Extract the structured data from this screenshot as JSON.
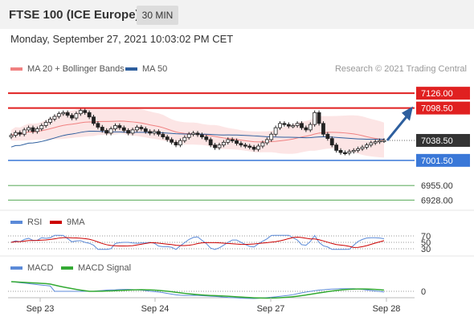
{
  "header": {
    "title": "FTSE 100 (ICE Europe)",
    "timeframe": "30 MIN"
  },
  "timestamp": "Monday, September 27, 2021 10:03:02 PM CET",
  "credit": "Research © 2021 Trading Central",
  "colors": {
    "resistance": "#e02020",
    "support": "#3a78d8",
    "target": "#1a8a1a",
    "arrow": "#2e5f9e",
    "ma20": "#f08080",
    "ma50": "#2e5f9e",
    "rsi": "#5b8ad8",
    "rsi9": "#cc0000",
    "macd": "#5b8ad8",
    "macd_signal": "#33aa33"
  },
  "chart_data": [
    {
      "type": "candlestick",
      "title": "FTSE 100 (ICE Europe)",
      "timeframe": "30 MIN",
      "ylim": [
        6915,
        7150
      ],
      "x_ticks": [
        "Sep 23",
        "Sep 24",
        "Sep 27",
        "Sep 28"
      ],
      "legend": [
        {
          "name": "MA 20 + Bollinger Bands",
          "color": "#f08080"
        },
        {
          "name": "MA 50",
          "color": "#2e5f9e"
        }
      ],
      "levels": [
        {
          "value": 7126.0,
          "label": "7126.00",
          "kind": "resistance"
        },
        {
          "value": 7098.5,
          "label": "7098.50",
          "kind": "resistance"
        },
        {
          "value": 7038.5,
          "label": "7038.50",
          "kind": "last"
        },
        {
          "value": 7001.5,
          "label": "7001.50",
          "kind": "support"
        },
        {
          "value": 6955.0,
          "label": "6955.00",
          "kind": "target"
        },
        {
          "value": 6928.0,
          "label": "6928.00",
          "kind": "target"
        }
      ],
      "close_series": [
        7048,
        7053,
        7050,
        7058,
        7062,
        7055,
        7060,
        7066,
        7072,
        7078,
        7083,
        7088,
        7090,
        7085,
        7080,
        7088,
        7094,
        7090,
        7082,
        7070,
        7063,
        7057,
        7052,
        7060,
        7066,
        7062,
        7057,
        7052,
        7058,
        7063,
        7060,
        7055,
        7052,
        7055,
        7050,
        7045,
        7040,
        7035,
        7030,
        7038,
        7044,
        7050,
        7052,
        7049,
        7045,
        7040,
        7030,
        7025,
        7030,
        7035,
        7040,
        7038,
        7033,
        7030,
        7028,
        7026,
        7022,
        7028,
        7034,
        7040,
        7050,
        7062,
        7070,
        7068,
        7065,
        7066,
        7070,
        7062,
        7058,
        7068,
        7090,
        7070,
        7050,
        7042,
        7030,
        7020,
        7016,
        7015,
        7018,
        7020,
        7023,
        7026,
        7030,
        7034,
        7036,
        7038,
        7038.5
      ],
      "annotation": {
        "type": "arrow",
        "from": 7038.5,
        "to": 7098.5
      }
    },
    {
      "type": "line",
      "legend": [
        {
          "name": "RSI",
          "color": "#5b8ad8"
        },
        {
          "name": "9MA",
          "color": "#cc0000"
        }
      ],
      "ylim": [
        0,
        100
      ],
      "levels": [
        70,
        50,
        30
      ],
      "level_labels": [
        "70",
        "50",
        "30"
      ]
    },
    {
      "type": "line",
      "legend": [
        {
          "name": "MACD",
          "color": "#5b8ad8"
        },
        {
          "name": "MACD Signal",
          "color": "#33aa33"
        }
      ],
      "zero_label": "0"
    }
  ]
}
